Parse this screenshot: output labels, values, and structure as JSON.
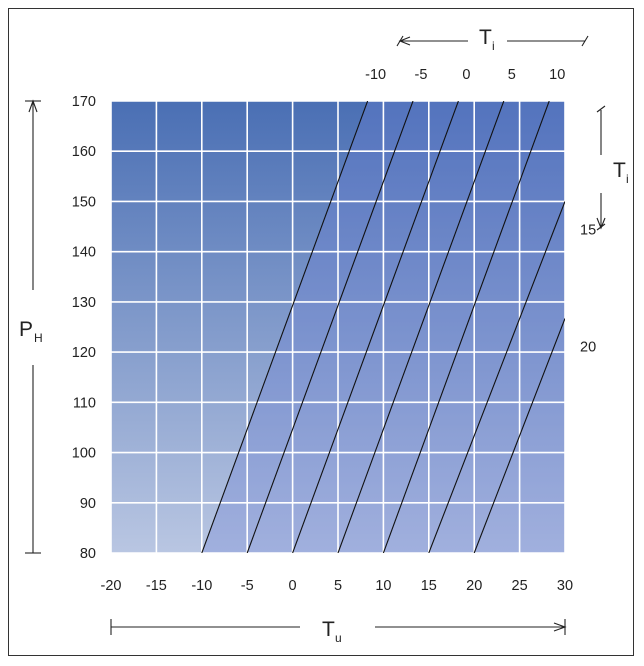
{
  "chart_data": {
    "type": "line",
    "x_axis": {
      "label": "T",
      "label_sub": "u",
      "range": [
        -20,
        30
      ],
      "ticks": [
        "-20",
        "-15",
        "-10",
        "-5",
        "0",
        "5",
        "10",
        "15",
        "20",
        "25",
        "30"
      ]
    },
    "y_axis": {
      "label": "P",
      "label_sub": "H",
      "range": [
        80,
        170
      ],
      "ticks": [
        "80",
        "90",
        "100",
        "110",
        "120",
        "130",
        "140",
        "150",
        "160",
        "170"
      ]
    },
    "ti_axis": {
      "label": "T",
      "label_sub": "i",
      "top_ticks": [
        "-10",
        "-5",
        "0",
        "5",
        "10"
      ],
      "right_ticks": [
        "15",
        "20"
      ]
    },
    "grid": true,
    "series": [
      {
        "label": "-10",
        "x": [
          -10,
          8.26
        ],
        "y": [
          80,
          170
        ]
      },
      {
        "label": "-5",
        "x": [
          -5,
          13.26
        ],
        "y": [
          80,
          170
        ]
      },
      {
        "label": "0",
        "x": [
          0,
          18.26
        ],
        "y": [
          80,
          170
        ]
      },
      {
        "label": "5",
        "x": [
          5,
          23.26
        ],
        "y": [
          80,
          170
        ]
      },
      {
        "label": "10",
        "x": [
          10,
          28.26
        ],
        "y": [
          80,
          170
        ]
      },
      {
        "label": "15",
        "x": [
          15,
          30
        ],
        "y": [
          80,
          150.0
        ]
      },
      {
        "label": "20",
        "x": [
          20,
          30
        ],
        "y": [
          80,
          126.7
        ]
      }
    ],
    "colors": {
      "plot_top": "#4a6fb4",
      "plot_bottom": "#b9c6e2",
      "shade_right": "#6b7fd4",
      "line": "#111111",
      "grid": "#ffffff"
    }
  }
}
